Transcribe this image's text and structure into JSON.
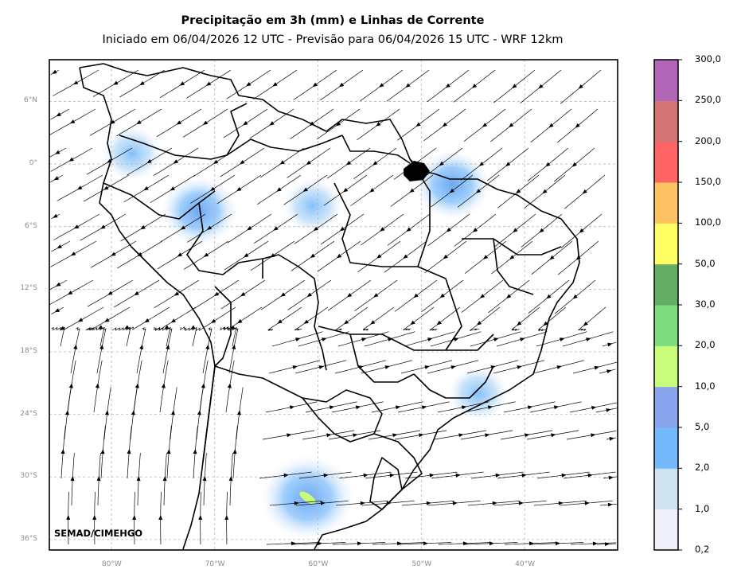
{
  "title": "Precipitação em 3h (mm) e Linhas de Corrente",
  "subtitle": "Iniciado em 06/04/2026 12 UTC - Previsão para 06/04/2026 15 UTC - WRF 12km",
  "credit": "SEMAD/CIMEHGO",
  "map": {
    "lon_range": [
      -86,
      -31
    ],
    "lat_range": [
      -37,
      10
    ],
    "lat_ticks": [
      {
        "value": 6,
        "label": "6°N"
      },
      {
        "value": 0,
        "label": "0°"
      },
      {
        "value": -6,
        "label": "6°S"
      },
      {
        "value": -12,
        "label": "12°S"
      },
      {
        "value": -18,
        "label": "18°S"
      },
      {
        "value": -24,
        "label": "24°S"
      },
      {
        "value": -30,
        "label": "30°S"
      },
      {
        "value": -36,
        "label": "36°S"
      }
    ],
    "lon_ticks": [
      {
        "value": -80,
        "label": "80°W"
      },
      {
        "value": -70,
        "label": "70°W"
      },
      {
        "value": -60,
        "label": "60°W"
      },
      {
        "value": -50,
        "label": "50°W"
      },
      {
        "value": -40,
        "label": "40°W"
      }
    ],
    "grid": true
  },
  "colorbar": {
    "colors": [
      "#efeff9",
      "#cde4ee",
      "#74b9fb",
      "#8aa3ed",
      "#c8fb79",
      "#7fdc7e",
      "#63ad65",
      "#fefe64",
      "#fec464",
      "#fe6464",
      "#d37575",
      "#b065b6"
    ],
    "labels": [
      "0,2",
      "1,0",
      "2,0",
      "5,0",
      "10,0",
      "20,0",
      "30,0",
      "50,0",
      "100,0",
      "150,0",
      "200,0",
      "250,0",
      "300,0"
    ]
  },
  "precip_areas": [
    {
      "region": "Western Amazon",
      "lon": -71.5,
      "lat": -4.5,
      "level": 3
    },
    {
      "region": "Central Amazon",
      "lon": -60.5,
      "lat": -4,
      "level": 2
    },
    {
      "region": "Amapá / Pará coast",
      "lon": -47,
      "lat": -2,
      "level": 3
    },
    {
      "region": "Northern Argentina",
      "lon": -61,
      "lat": -32,
      "level": 4
    },
    {
      "region": "Colombia",
      "lon": -78,
      "lat": 1,
      "level": 2
    },
    {
      "region": "Southeast Brazil",
      "lon": -44.5,
      "lat": -22,
      "level": 2
    }
  ]
}
